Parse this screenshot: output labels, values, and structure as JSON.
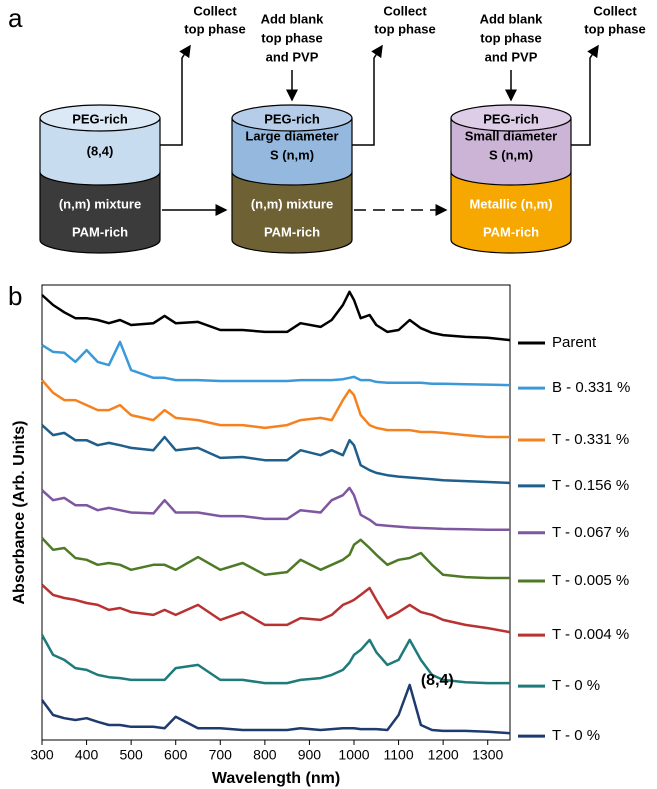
{
  "diagram": {
    "panel_label": "a",
    "cylinders": [
      {
        "top": [
          "PEG-rich",
          "(8,4)"
        ],
        "bottom": [
          "(n,m) mixture",
          "PAM-rich"
        ]
      },
      {
        "top": [
          "PEG-rich",
          "Large diameter",
          "S (n,m)"
        ],
        "bottom": [
          "(n,m) mixture",
          "PAM-rich"
        ]
      },
      {
        "top": [
          "PEG-rich",
          "Small diameter",
          "S (n,m)"
        ],
        "bottom": [
          "Metallic (n,m)",
          "PAM-rich"
        ]
      }
    ],
    "collect_labels": [
      [
        "Collect",
        "top phase"
      ],
      [
        "Collect",
        "top phase"
      ],
      [
        "Collect",
        "top phase"
      ]
    ],
    "add_labels": [
      [
        "Add blank",
        "top phase",
        "and PVP"
      ],
      [
        "Add blank",
        "top phase",
        "and PVP"
      ]
    ]
  },
  "chart_data": {
    "type": "line",
    "panel_label": "b",
    "x_label": "Wavelength (nm)",
    "y_label": "Absorbance (Arb. Units)",
    "annotation": "(8,4)",
    "xlim": [
      300,
      1350
    ],
    "ylim": [
      0,
      100
    ],
    "xticks": [
      300,
      400,
      500,
      600,
      700,
      800,
      900,
      1000,
      1100,
      1200,
      1300
    ],
    "legend": "right",
    "x": [
      300,
      325,
      350,
      375,
      400,
      425,
      450,
      475,
      500,
      550,
      575,
      600,
      650,
      700,
      750,
      800,
      850,
      880,
      925,
      950,
      975,
      990,
      1000,
      1015,
      1035,
      1050,
      1075,
      1100,
      1125,
      1150,
      1175,
      1200,
      1250,
      1300,
      1350
    ],
    "series": [
      {
        "name": "Parent",
        "color": "#000000",
        "values": [
          97.8,
          95.6,
          94,
          92.7,
          92.7,
          92.3,
          91.6,
          92.3,
          91.2,
          91.6,
          93.2,
          91.6,
          91.9,
          90.1,
          90.1,
          89.7,
          89.7,
          91.6,
          90.8,
          92.3,
          95.6,
          98.5,
          96.7,
          92.7,
          93.4,
          91.2,
          89.7,
          90.1,
          92.3,
          90.5,
          89.5,
          89,
          88.6,
          88.4,
          87.9
        ]
      },
      {
        "name": "B - 0.331 %",
        "color": "#3a9ad9",
        "values": [
          86.8,
          85.3,
          85.1,
          83.1,
          85.7,
          83.1,
          82.4,
          87.5,
          81.3,
          79.6,
          79.6,
          79.1,
          79.1,
          78.9,
          78.9,
          78.9,
          78.9,
          79.1,
          79.1,
          79.1,
          79.3,
          79.6,
          79.8,
          79.1,
          79.1,
          78.7,
          78.5,
          78.5,
          78.5,
          78.5,
          78.3,
          78.3,
          78.2,
          78.1,
          78
        ]
      },
      {
        "name": "T - 0.331 %",
        "color": "#f5821f",
        "values": [
          79.1,
          76.3,
          74.7,
          74.7,
          73.6,
          72.5,
          72.5,
          73.6,
          71.4,
          70.3,
          72.5,
          70.8,
          70.3,
          69.2,
          69.2,
          68.6,
          69.2,
          70.3,
          70.8,
          70.3,
          74.7,
          76.9,
          75.8,
          71.4,
          69.2,
          68.6,
          68.1,
          68.1,
          68.1,
          67.7,
          67.7,
          67.5,
          67,
          66.6,
          66.6
        ]
      },
      {
        "name": "T - 0.156 %",
        "color": "#1f5f8b",
        "values": [
          69.2,
          67,
          67.5,
          65.9,
          65.9,
          64.8,
          65.3,
          64.8,
          64.2,
          63.7,
          66.6,
          63.7,
          64.2,
          62,
          62.2,
          61.5,
          61.5,
          63.7,
          62.6,
          63.7,
          62.6,
          65.9,
          64.8,
          60.4,
          59.3,
          58.7,
          58.2,
          57.9,
          57.7,
          57.5,
          57.3,
          57.1,
          56.9,
          56.7,
          56.5
        ]
      },
      {
        "name": "T - 0.067 %",
        "color": "#7e57a0",
        "values": [
          54.9,
          52.7,
          53.2,
          51.6,
          51.6,
          50.5,
          51,
          50.5,
          50,
          49.8,
          52.7,
          50,
          50,
          49.2,
          49.2,
          48.6,
          48.6,
          50.5,
          50,
          52.7,
          53.8,
          55.4,
          53.8,
          49.5,
          48.4,
          47.3,
          47.1,
          46.9,
          46.7,
          46.6,
          46.5,
          46.4,
          46.3,
          46.2,
          46.2
        ]
      },
      {
        "name": "T - 0.005 %",
        "color": "#4e7a27",
        "values": [
          44.4,
          41.8,
          42.2,
          40,
          39.6,
          38.5,
          38.9,
          38.5,
          37.4,
          38.5,
          38.5,
          37.4,
          40.2,
          37.4,
          38.9,
          36.3,
          36.9,
          39.6,
          37.4,
          38.5,
          39.6,
          40.7,
          42.9,
          44,
          42.2,
          40.7,
          38.5,
          39.6,
          40,
          41.1,
          38.5,
          36.3,
          35.8,
          35.6,
          35.6
        ]
      },
      {
        "name": "T - 0.004 %",
        "color": "#b83232",
        "values": [
          34.1,
          31.9,
          31.2,
          30.8,
          30.1,
          29.7,
          28.6,
          29,
          28.1,
          27.5,
          28.6,
          27.5,
          29.7,
          26.4,
          28.1,
          25.3,
          25.3,
          26.8,
          26.4,
          27.5,
          29.7,
          30.3,
          30.8,
          31.9,
          33.4,
          30.8,
          26.8,
          28.1,
          29.7,
          28.1,
          27.5,
          26.4,
          25.3,
          24.6,
          23.7
        ]
      },
      {
        "name": "T - 0 %",
        "color": "#1f7a7a",
        "values": [
          23.1,
          18.7,
          17.6,
          15.8,
          15.4,
          14.3,
          13.8,
          13.6,
          13.2,
          13.2,
          13.2,
          15.8,
          16.5,
          13.2,
          13.2,
          12.5,
          12.5,
          13.2,
          13.6,
          14.3,
          15.4,
          17,
          18.7,
          19.8,
          22,
          19.3,
          16.5,
          17.6,
          22,
          17.6,
          14.3,
          13.2,
          12.7,
          12.5,
          12.5
        ]
      },
      {
        "name": "T - 0 %",
        "color": "#1f3a6e",
        "values": [
          8.8,
          5.5,
          4.8,
          4.4,
          4.8,
          4,
          3.3,
          3.3,
          2.9,
          2.9,
          2.6,
          5.1,
          2.6,
          2.6,
          2.2,
          2.2,
          2.2,
          2.6,
          2.2,
          2.4,
          2.6,
          2.6,
          2.6,
          2.4,
          2.4,
          2.4,
          2.2,
          5.5,
          12.1,
          3.3,
          2.2,
          2,
          2,
          1.8,
          1.5
        ]
      }
    ]
  }
}
